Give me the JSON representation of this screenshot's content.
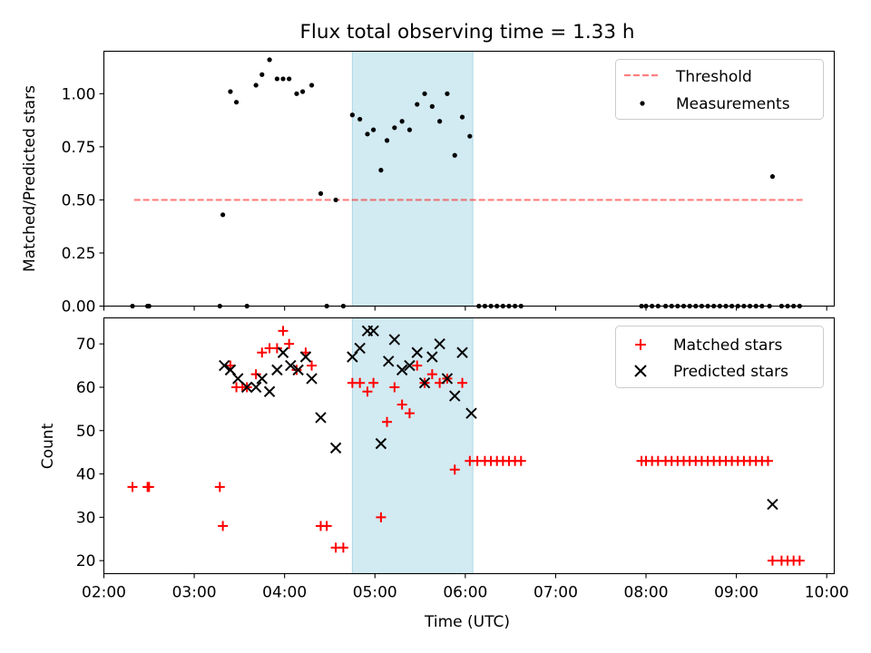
{
  "figure_title": "Flux total observing time = 1.33 h",
  "chart_data": [
    {
      "type": "scatter",
      "title": "Flux total observing time = 1.33 h",
      "xlabel": "",
      "ylabel": "Matched/Predicted stars",
      "xlim": [
        "02:00",
        "10:05"
      ],
      "ylim": [
        0,
        1.2
      ],
      "yticks": [
        0.0,
        0.25,
        0.5,
        0.75,
        1.0
      ],
      "ytick_labels": [
        "0.00",
        "0.25",
        "0.50",
        "0.75",
        "1.00"
      ],
      "xticks": [
        "02:00",
        "03:00",
        "04:00",
        "05:00",
        "06:00",
        "07:00",
        "08:00",
        "09:00",
        "10:00"
      ],
      "xtick_labels_visible": false,
      "grid": false,
      "legend_position": "top-right",
      "shaded_region": {
        "x_start": "04:45",
        "x_end": "06:05",
        "color": "#add8e6"
      },
      "threshold": {
        "name": "Threshold",
        "value": 0.5,
        "x_start": "02:20",
        "x_end": "09:44",
        "color": "#ff0000",
        "style": "dashed"
      },
      "series": [
        {
          "name": "Measurements",
          "marker": "dot",
          "color": "#000000",
          "points": [
            [
              "02:19",
              0
            ],
            [
              "02:29",
              0
            ],
            [
              "02:30",
              0
            ],
            [
              "03:17",
              0
            ],
            [
              "03:19",
              0.43
            ],
            [
              "03:24",
              1.01
            ],
            [
              "03:28",
              0.96
            ],
            [
              "03:35",
              0
            ],
            [
              "03:41",
              1.04
            ],
            [
              "03:45",
              1.09
            ],
            [
              "03:50",
              1.16
            ],
            [
              "03:55",
              1.07
            ],
            [
              "03:59",
              1.07
            ],
            [
              "04:03",
              1.07
            ],
            [
              "04:08",
              1.0
            ],
            [
              "04:12",
              1.01
            ],
            [
              "04:18",
              1.04
            ],
            [
              "04:24",
              0.53
            ],
            [
              "04:28",
              0
            ],
            [
              "04:34",
              0.5
            ],
            [
              "04:39",
              0
            ],
            [
              "04:45",
              0.9
            ],
            [
              "04:50",
              0.88
            ],
            [
              "04:55",
              0.81
            ],
            [
              "04:59",
              0.83
            ],
            [
              "05:04",
              0.64
            ],
            [
              "05:08",
              0.78
            ],
            [
              "05:13",
              0.84
            ],
            [
              "05:18",
              0.87
            ],
            [
              "05:23",
              0.83
            ],
            [
              "05:28",
              0.95
            ],
            [
              "05:33",
              1.0
            ],
            [
              "05:38",
              0.94
            ],
            [
              "05:43",
              0.87
            ],
            [
              "05:48",
              1.0
            ],
            [
              "05:53",
              0.71
            ],
            [
              "05:58",
              0.89
            ],
            [
              "06:03",
              0.8
            ],
            [
              "06:09",
              0
            ],
            [
              "06:13",
              0
            ],
            [
              "06:17",
              0
            ],
            [
              "06:21",
              0
            ],
            [
              "06:25",
              0
            ],
            [
              "06:29",
              0
            ],
            [
              "06:33",
              0
            ],
            [
              "06:37",
              0
            ],
            [
              "07:57",
              0
            ],
            [
              "08:00",
              0
            ],
            [
              "08:04",
              0
            ],
            [
              "08:08",
              0
            ],
            [
              "08:13",
              0
            ],
            [
              "08:17",
              0
            ],
            [
              "08:21",
              0
            ],
            [
              "08:25",
              0
            ],
            [
              "08:29",
              0
            ],
            [
              "08:33",
              0
            ],
            [
              "08:37",
              0
            ],
            [
              "08:41",
              0
            ],
            [
              "08:45",
              0
            ],
            [
              "08:49",
              0
            ],
            [
              "08:53",
              0
            ],
            [
              "08:57",
              0
            ],
            [
              "09:01",
              0
            ],
            [
              "09:05",
              0
            ],
            [
              "09:09",
              0
            ],
            [
              "09:13",
              0
            ],
            [
              "09:17",
              0
            ],
            [
              "09:22",
              0
            ],
            [
              "09:24",
              0.61
            ],
            [
              "09:30",
              0
            ],
            [
              "09:34",
              0
            ],
            [
              "09:38",
              0
            ],
            [
              "09:42",
              0
            ]
          ]
        }
      ]
    },
    {
      "type": "scatter",
      "title": "",
      "xlabel": "Time (UTC)",
      "ylabel": "Count",
      "xlim": [
        "02:00",
        "10:05"
      ],
      "ylim": [
        17,
        76
      ],
      "yticks": [
        20,
        30,
        40,
        50,
        60,
        70
      ],
      "ytick_labels": [
        "20",
        "30",
        "40",
        "50",
        "60",
        "70"
      ],
      "xticks": [
        "02:00",
        "03:00",
        "04:00",
        "05:00",
        "06:00",
        "07:00",
        "08:00",
        "09:00",
        "10:00"
      ],
      "xtick_labels": [
        "02:00",
        "03:00",
        "04:00",
        "05:00",
        "06:00",
        "07:00",
        "08:00",
        "09:00",
        "10:00"
      ],
      "grid": false,
      "legend_position": "top-right",
      "shaded_region": {
        "x_start": "04:45",
        "x_end": "06:05",
        "color": "#add8e6"
      },
      "series": [
        {
          "name": "Matched stars",
          "marker": "plus",
          "color": "#ff0000",
          "points": [
            [
              "02:19",
              37
            ],
            [
              "02:29",
              37
            ],
            [
              "02:30",
              37
            ],
            [
              "03:17",
              37
            ],
            [
              "03:19",
              28
            ],
            [
              "03:24",
              65
            ],
            [
              "03:28",
              60
            ],
            [
              "03:32",
              60
            ],
            [
              "03:35",
              60
            ],
            [
              "03:41",
              63
            ],
            [
              "03:45",
              68
            ],
            [
              "03:50",
              69
            ],
            [
              "03:55",
              69
            ],
            [
              "03:59",
              73
            ],
            [
              "04:03",
              70
            ],
            [
              "04:08",
              64
            ],
            [
              "04:14",
              68
            ],
            [
              "04:18",
              65
            ],
            [
              "04:24",
              28
            ],
            [
              "04:28",
              28
            ],
            [
              "04:34",
              23
            ],
            [
              "04:39",
              23
            ],
            [
              "04:45",
              61
            ],
            [
              "04:50",
              61
            ],
            [
              "04:55",
              59
            ],
            [
              "04:59",
              61
            ],
            [
              "05:04",
              30
            ],
            [
              "05:08",
              52
            ],
            [
              "05:13",
              60
            ],
            [
              "05:18",
              56
            ],
            [
              "05:23",
              54
            ],
            [
              "05:28",
              65
            ],
            [
              "05:33",
              61
            ],
            [
              "05:38",
              63
            ],
            [
              "05:43",
              61
            ],
            [
              "05:48",
              62
            ],
            [
              "05:53",
              41
            ],
            [
              "05:58",
              61
            ],
            [
              "06:03",
              43
            ],
            [
              "06:08",
              43
            ],
            [
              "06:13",
              43
            ],
            [
              "06:17",
              43
            ],
            [
              "06:21",
              43
            ],
            [
              "06:25",
              43
            ],
            [
              "06:29",
              43
            ],
            [
              "06:33",
              43
            ],
            [
              "06:37",
              43
            ],
            [
              "07:57",
              43
            ],
            [
              "08:00",
              43
            ],
            [
              "08:04",
              43
            ],
            [
              "08:08",
              43
            ],
            [
              "08:13",
              43
            ],
            [
              "08:17",
              43
            ],
            [
              "08:21",
              43
            ],
            [
              "08:25",
              43
            ],
            [
              "08:29",
              43
            ],
            [
              "08:33",
              43
            ],
            [
              "08:37",
              43
            ],
            [
              "08:41",
              43
            ],
            [
              "08:45",
              43
            ],
            [
              "08:49",
              43
            ],
            [
              "08:53",
              43
            ],
            [
              "08:57",
              43
            ],
            [
              "09:01",
              43
            ],
            [
              "09:05",
              43
            ],
            [
              "09:09",
              43
            ],
            [
              "09:13",
              43
            ],
            [
              "09:17",
              43
            ],
            [
              "09:21",
              43
            ],
            [
              "09:24",
              20
            ],
            [
              "09:30",
              20
            ],
            [
              "09:34",
              20
            ],
            [
              "09:38",
              20
            ],
            [
              "09:42",
              20
            ]
          ]
        },
        {
          "name": "Predicted stars",
          "marker": "x",
          "color": "#000000",
          "points": [
            [
              "03:20",
              65
            ],
            [
              "03:24",
              64
            ],
            [
              "03:29",
              62
            ],
            [
              "03:35",
              60
            ],
            [
              "03:41",
              60
            ],
            [
              "03:45",
              62
            ],
            [
              "03:50",
              59
            ],
            [
              "03:55",
              64
            ],
            [
              "03:59",
              68
            ],
            [
              "04:04",
              65
            ],
            [
              "04:09",
              64
            ],
            [
              "04:14",
              67
            ],
            [
              "04:18",
              62
            ],
            [
              "04:24",
              53
            ],
            [
              "04:34",
              46
            ],
            [
              "04:45",
              67
            ],
            [
              "04:50",
              69
            ],
            [
              "04:55",
              73
            ],
            [
              "04:59",
              73
            ],
            [
              "05:04",
              47
            ],
            [
              "05:09",
              66
            ],
            [
              "05:13",
              71
            ],
            [
              "05:18",
              64
            ],
            [
              "05:23",
              65
            ],
            [
              "05:28",
              68
            ],
            [
              "05:33",
              61
            ],
            [
              "05:38",
              67
            ],
            [
              "05:43",
              70
            ],
            [
              "05:48",
              62
            ],
            [
              "05:53",
              58
            ],
            [
              "05:58",
              68
            ],
            [
              "06:04",
              54
            ],
            [
              "09:24",
              33
            ]
          ]
        }
      ]
    }
  ]
}
